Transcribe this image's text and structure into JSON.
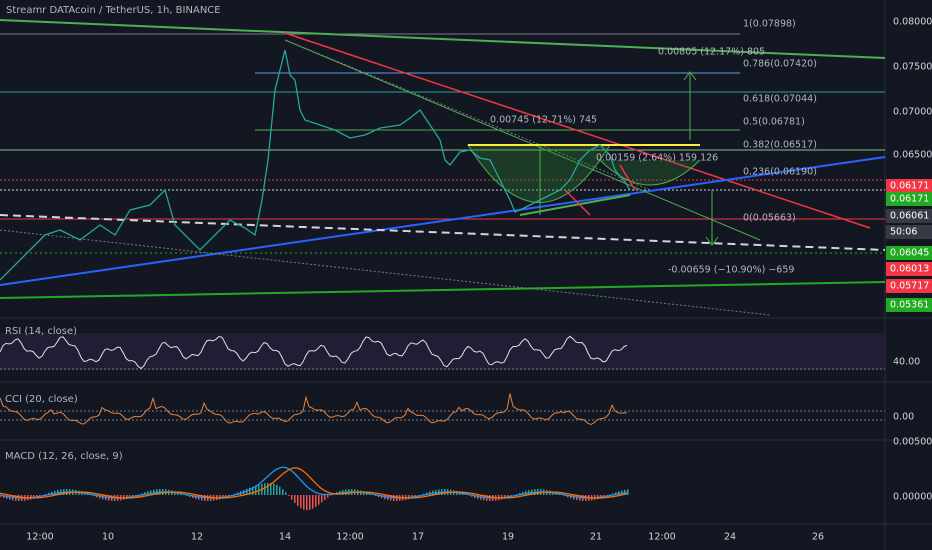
{
  "header": {
    "title": "Streamr DATAcoin / TetherUS, 1h, BINANCE"
  },
  "price_axis": [
    "0.08000",
    "0.07500",
    "0.07000",
    "0.06500"
  ],
  "price_tags": [
    {
      "label": "0.06171",
      "color": "#f23645"
    },
    {
      "label": "0.06171",
      "color": "#22ab22"
    },
    {
      "label": "0.06061",
      "color": "#d1d4dc"
    },
    {
      "label": "50:06",
      "color": "#d1d4dc"
    },
    {
      "label": "0.06045",
      "color": "#22ab22"
    },
    {
      "label": "0.06013",
      "color": "#f23645"
    },
    {
      "label": "0.05717",
      "color": "#f23645"
    },
    {
      "label": "0.05361",
      "color": "#22ab22"
    }
  ],
  "fib_levels": [
    {
      "label": "1(0.07898)",
      "color": "#787b86"
    },
    {
      "label": "0.786(0.07420)",
      "color": "#5b9cf6"
    },
    {
      "label": "0.618(0.07044)",
      "color": "#26a69a"
    },
    {
      "label": "0.5(0.06781)",
      "color": "#4caf50"
    },
    {
      "label": "0.382(0.06517)",
      "color": "#81c784"
    },
    {
      "label": "0.236(0.06190)",
      "color": "#f23645"
    },
    {
      "label": "0(0.05663)",
      "color": "#787b86"
    }
  ],
  "annotations": [
    "0.00805 (12.17%) 805",
    "0.00745 (12.71%) 745",
    "0.00159 (2.64%) 159 126",
    "-0.00659 (−10.90%) −659"
  ],
  "indicators": {
    "rsi": {
      "title": "RSI (14, close)",
      "axis": [
        "40.00"
      ]
    },
    "cci": {
      "title": "CCI (20, close)",
      "axis": [
        "0.00"
      ]
    },
    "macd": {
      "title": "MACD (12, 26, close, 9)",
      "axis": [
        "0.00500",
        "0.00000"
      ]
    }
  },
  "time_axis": [
    "12:00",
    "10",
    "12",
    "14",
    "12:00",
    "17",
    "19",
    "21",
    "12:00",
    "24",
    "26"
  ]
}
